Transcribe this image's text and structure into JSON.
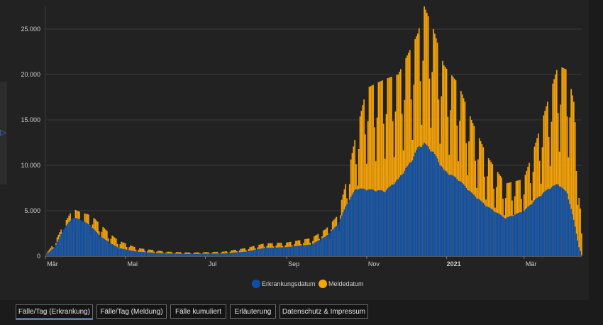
{
  "colors": {
    "background": "#222222",
    "grid": "#3a3a3a",
    "erkrankung": "#0d4fa8",
    "meldung": "#f5a30a",
    "tick_text": "#d0d0d0"
  },
  "tabs": [
    {
      "label": "Fälle/Tag (Erkrankung)",
      "active": true
    },
    {
      "label": "Fälle/Tag (Meldung)",
      "active": false
    },
    {
      "label": "Fälle kumuliert",
      "active": false
    },
    {
      "label": "Erläuterung",
      "active": false
    },
    {
      "label": "Datenschutz & Impressum",
      "active": false
    }
  ],
  "side_toggle_icon": "chevron-right-icon",
  "chart_data": {
    "type": "bar",
    "title": "",
    "xlabel": "",
    "ylabel": "",
    "x_start": "2020-03-01",
    "x_end": "2021-04-14",
    "ylim": [
      0,
      27500
    ],
    "y_ticks": [
      0,
      5000,
      10000,
      15000,
      20000,
      25000
    ],
    "y_tick_labels": [
      "0",
      "5.000",
      "10.000",
      "15.000",
      "20.000",
      "25.000"
    ],
    "x_ticks": [
      {
        "date": "2020-03-01",
        "label": "Mär",
        "bold": false
      },
      {
        "date": "2020-05-01",
        "label": "Mai",
        "bold": false
      },
      {
        "date": "2020-07-01",
        "label": "Jul",
        "bold": false
      },
      {
        "date": "2020-09-01",
        "label": "Sep",
        "bold": false
      },
      {
        "date": "2020-11-01",
        "label": "Nov",
        "bold": false
      },
      {
        "date": "2021-01-01",
        "label": "2021",
        "bold": true
      },
      {
        "date": "2021-03-01",
        "label": "Mär",
        "bold": false
      }
    ],
    "grid": "y-major",
    "legend_position": "bottom-center",
    "series": [
      {
        "name": "Erkrankungsdatum",
        "color": "#0d4fa8",
        "points": [
          [
            "2020-03-01",
            100
          ],
          [
            "2020-03-08",
            1000
          ],
          [
            "2020-03-15",
            3000
          ],
          [
            "2020-03-22",
            4300
          ],
          [
            "2020-03-29",
            4000
          ],
          [
            "2020-04-05",
            3300
          ],
          [
            "2020-04-12",
            2200
          ],
          [
            "2020-04-19",
            1500
          ],
          [
            "2020-04-26",
            900
          ],
          [
            "2020-05-10",
            500
          ],
          [
            "2020-06-01",
            300
          ],
          [
            "2020-06-20",
            250
          ],
          [
            "2020-07-15",
            300
          ],
          [
            "2020-08-01",
            500
          ],
          [
            "2020-08-15",
            900
          ],
          [
            "2020-09-01",
            1000
          ],
          [
            "2020-09-20",
            1300
          ],
          [
            "2020-10-01",
            2200
          ],
          [
            "2020-10-10",
            3500
          ],
          [
            "2020-10-17",
            5800
          ],
          [
            "2020-10-24",
            7500
          ],
          [
            "2020-11-01",
            7400
          ],
          [
            "2020-11-15",
            7200
          ],
          [
            "2020-11-25",
            8500
          ],
          [
            "2020-12-05",
            10500
          ],
          [
            "2020-12-10",
            12000
          ],
          [
            "2020-12-15",
            12500
          ],
          [
            "2020-12-22",
            11500
          ],
          [
            "2020-12-30",
            9500
          ],
          [
            "2021-01-10",
            8500
          ],
          [
            "2021-01-20",
            7000
          ],
          [
            "2021-02-01",
            5500
          ],
          [
            "2021-02-15",
            4200
          ],
          [
            "2021-03-01",
            5000
          ],
          [
            "2021-03-10",
            6300
          ],
          [
            "2021-03-20",
            7500
          ],
          [
            "2021-03-27",
            8000
          ],
          [
            "2021-04-03",
            7000
          ],
          [
            "2021-04-08",
            4000
          ],
          [
            "2021-04-12",
            1000
          ],
          [
            "2021-04-14",
            100
          ]
        ]
      },
      {
        "name": "Meldedatum",
        "color": "#f5a30a",
        "points": [
          [
            "2020-03-01",
            150
          ],
          [
            "2020-03-08",
            1500
          ],
          [
            "2020-03-15",
            3500
          ],
          [
            "2020-03-22",
            5200
          ],
          [
            "2020-03-29",
            4800
          ],
          [
            "2020-04-05",
            4500
          ],
          [
            "2020-04-12",
            3500
          ],
          [
            "2020-04-19",
            2500
          ],
          [
            "2020-04-26",
            1700
          ],
          [
            "2020-05-10",
            900
          ],
          [
            "2020-06-01",
            500
          ],
          [
            "2020-06-20",
            400
          ],
          [
            "2020-07-15",
            500
          ],
          [
            "2020-08-01",
            900
          ],
          [
            "2020-08-15",
            1400
          ],
          [
            "2020-09-01",
            1500
          ],
          [
            "2020-09-20",
            2000
          ],
          [
            "2020-10-01",
            3000
          ],
          [
            "2020-10-10",
            4500
          ],
          [
            "2020-10-17",
            8500
          ],
          [
            "2020-10-24",
            13500
          ],
          [
            "2020-11-01",
            18500
          ],
          [
            "2020-11-15",
            19500
          ],
          [
            "2020-11-25",
            20000
          ],
          [
            "2020-12-05",
            23000
          ],
          [
            "2020-12-10",
            24500
          ],
          [
            "2020-12-15",
            27500
          ],
          [
            "2020-12-22",
            25000
          ],
          [
            "2020-12-30",
            21000
          ],
          [
            "2021-01-10",
            19000
          ],
          [
            "2021-01-20",
            15000
          ],
          [
            "2021-02-01",
            11000
          ],
          [
            "2021-02-15",
            8000
          ],
          [
            "2021-03-01",
            8500
          ],
          [
            "2021-03-10",
            12500
          ],
          [
            "2021-03-20",
            17500
          ],
          [
            "2021-03-27",
            21000
          ],
          [
            "2021-04-03",
            20500
          ],
          [
            "2021-04-08",
            17000
          ],
          [
            "2021-04-12",
            8000
          ],
          [
            "2021-04-14",
            2500
          ]
        ]
      }
    ]
  }
}
